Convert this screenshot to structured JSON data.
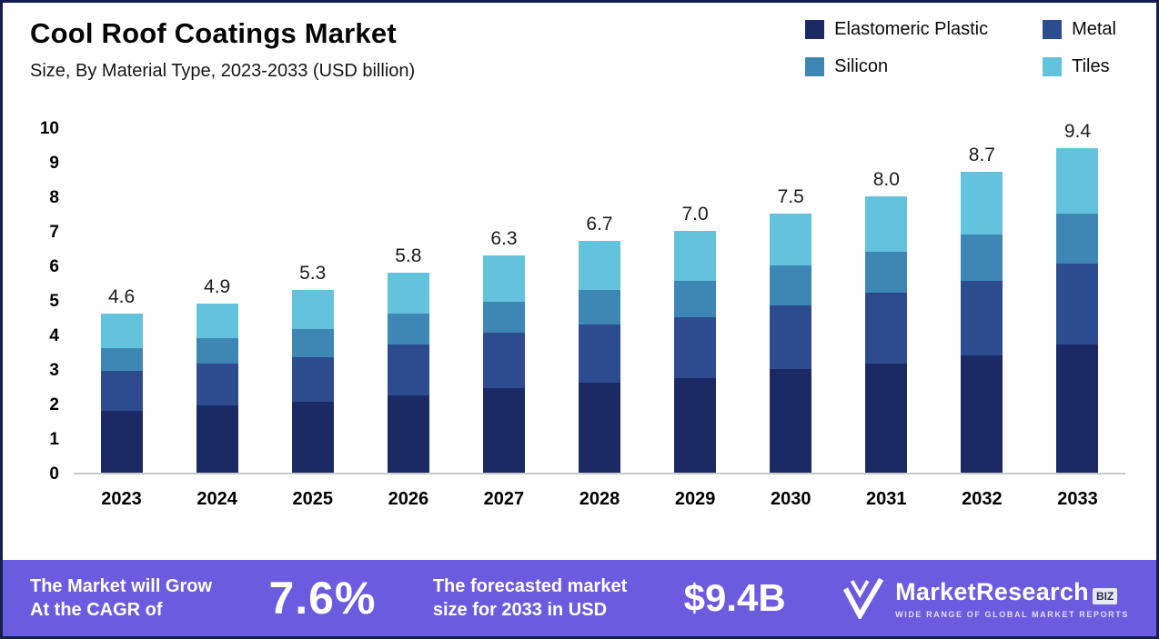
{
  "header": {
    "title": "Cool Roof Coatings Market",
    "subtitle": "Size, By Material Type, 2023-2033 (USD billion)"
  },
  "legend": [
    {
      "label": "Elastomeric Plastic",
      "color": "#1b2a65"
    },
    {
      "label": "Metal",
      "color": "#2c4c8f"
    },
    {
      "label": "Silicon",
      "color": "#3e87b5"
    },
    {
      "label": "Tiles",
      "color": "#63c3dc"
    }
  ],
  "chart_data": {
    "type": "bar",
    "stacked": true,
    "title": "Cool Roof Coatings Market",
    "subtitle": "Size, By Material Type, 2023-2033 (USD billion)",
    "categories": [
      "2023",
      "2024",
      "2025",
      "2026",
      "2027",
      "2028",
      "2029",
      "2030",
      "2031",
      "2032",
      "2033"
    ],
    "series": [
      {
        "name": "Elastomeric Plastic",
        "color": "#1b2a65",
        "values": [
          1.8,
          1.95,
          2.05,
          2.25,
          2.45,
          2.6,
          2.75,
          3.0,
          3.15,
          3.4,
          3.7
        ]
      },
      {
        "name": "Metal",
        "color": "#2c4c8f",
        "values": [
          1.15,
          1.2,
          1.3,
          1.45,
          1.6,
          1.7,
          1.75,
          1.85,
          2.05,
          2.15,
          2.35
        ]
      },
      {
        "name": "Silicon",
        "color": "#3e87b5",
        "values": [
          0.65,
          0.75,
          0.8,
          0.9,
          0.9,
          1.0,
          1.05,
          1.15,
          1.2,
          1.35,
          1.45
        ]
      },
      {
        "name": "Tiles",
        "color": "#63c3dc",
        "values": [
          1.0,
          1.0,
          1.15,
          1.2,
          1.35,
          1.4,
          1.45,
          1.5,
          1.6,
          1.8,
          1.9
        ]
      }
    ],
    "totals": [
      4.6,
      4.9,
      5.3,
      5.8,
      6.3,
      6.7,
      7.0,
      7.5,
      8.0,
      8.7,
      9.4
    ],
    "ylim": [
      0,
      10
    ],
    "yticks": [
      0,
      1,
      2,
      3,
      4,
      5,
      6,
      7,
      8,
      9,
      10
    ],
    "grid": false,
    "legend_position": "top-right",
    "unit": "USD billion"
  },
  "footer": {
    "background": "#6b5bdf",
    "cagr_label": "The Market will Grow\nAt the CAGR of",
    "cagr_value": "7.6%",
    "forecast_label": "The forecasted market\nsize for 2033 in USD",
    "forecast_value": "$9.4B",
    "brand": {
      "name_primary": "MarketResearch",
      "name_suffix": "BIZ",
      "tagline": "WIDE RANGE OF GLOBAL MARKET REPORTS"
    }
  }
}
